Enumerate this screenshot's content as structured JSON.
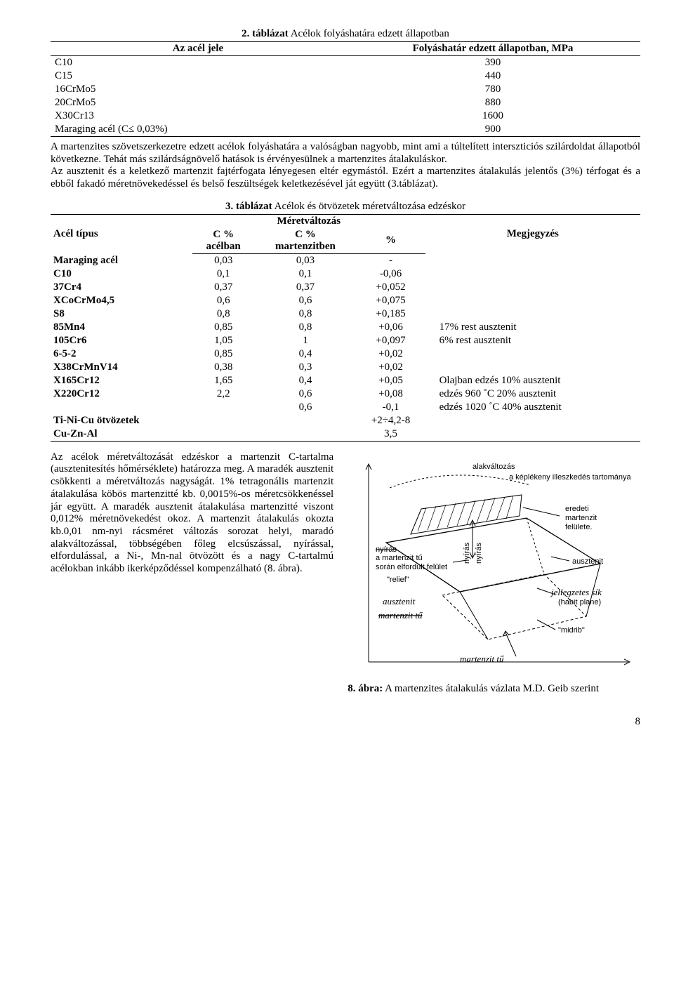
{
  "table2": {
    "caption_bold": "2. táblázat",
    "caption_rest": " Acélok folyáshatára edzett állapotban",
    "header_col1": "Az acél jele",
    "header_col2": "Folyáshatár edzett állapotban, MPa",
    "rows": [
      {
        "name": "C10",
        "val": "390"
      },
      {
        "name": "C15",
        "val": "440"
      },
      {
        "name": "16CrMo5",
        "val": "780"
      },
      {
        "name": "20CrMo5",
        "val": "880"
      },
      {
        "name": "X30Cr13",
        "val": "1600"
      },
      {
        "name": "Maraging acél (C≤ 0,03%)",
        "val": "900"
      }
    ]
  },
  "para1": "A martenzites szövetszerkezetre edzett acélok folyáshatára a valóságban nagyobb, mint ami a túltelített interszticiós szilárdoldat állapotból következne. Tehát más szilárdságnövelő hatások is érvényesülnek a martenzites átalakuláskor.",
  "para2": "Az ausztenit és a keletkező martenzit fajtérfogata lényegesen eltér egymástól. Ezért a martenzites átalakulás jelentős (3%) térfogat és a ebből fakadó méretnövekedéssel és belső feszültségek keletkezésével ját együtt (3.táblázat).",
  "table3": {
    "caption_bold": "3. táblázat",
    "caption_rest": " Acélok és ötvözetek méretváltozása edzéskor",
    "hdr_type": "Acél típus",
    "hdr_change": "Méretváltozás",
    "hdr_c_steel": "C % acélban",
    "hdr_c_mart": "C % martenzitben",
    "hdr_pct": "%",
    "hdr_note": "Megjegyzés",
    "rows": [
      {
        "name": "Maraging acél",
        "c1": "0,03",
        "c2": "0,03",
        "pct": "-",
        "note": ""
      },
      {
        "name": "C10",
        "c1": "0,1",
        "c2": "0,1",
        "pct": "-0,06",
        "note": ""
      },
      {
        "name": "37Cr4",
        "c1": "0,37",
        "c2": "0,37",
        "pct": "+0,052",
        "note": ""
      },
      {
        "name": "XCoCrMo4,5",
        "c1": "0,6",
        "c2": "0,6",
        "pct": "+0,075",
        "note": ""
      },
      {
        "name": "S8",
        "c1": "0,8",
        "c2": "0,8",
        "pct": "+0,185",
        "note": ""
      },
      {
        "name": "85Mn4",
        "c1": "0,85",
        "c2": "0,8",
        "pct": "+0,06",
        "note": "17% rest ausztenit"
      },
      {
        "name": "105Cr6",
        "c1": "1,05",
        "c2": "1",
        "pct": "+0,097",
        "note": "6% rest ausztenit"
      },
      {
        "name": "6-5-2",
        "c1": "0,85",
        "c2": "0,4",
        "pct": "+0,02",
        "note": ""
      },
      {
        "name": "X38CrMnV14",
        "c1": "0,38",
        "c2": "0,3",
        "pct": "+0,02",
        "note": ""
      },
      {
        "name": "X165Cr12",
        "c1": "1,65",
        "c2": "0,4",
        "pct": "+0,05",
        "note": "Olajban edzés 10% ausztenit"
      },
      {
        "name": "X220Cr12",
        "c1": "2,2",
        "c2": "0,6",
        "pct": "+0,08",
        "note": "edzés 960 ˚C 20% ausztenit"
      },
      {
        "name": "",
        "c1": "",
        "c2": "0,6",
        "pct": "-0,1",
        "note": "edzés 1020 ˚C 40% ausztenit"
      },
      {
        "name": "Ti-Ni-Cu ötvözetek",
        "c1": "",
        "c2": "",
        "pct": "+2÷4,2-8",
        "note": ""
      },
      {
        "name": "Cu-Zn-Al",
        "c1": "",
        "c2": "",
        "pct": "3,5",
        "note": ""
      }
    ]
  },
  "para3": "Az acélok méretváltozását edzéskor a martenzit C-tartalma (ausztenitesítés hőmérséklete) határozza meg. A maradék ausztenit csökkenti a méretváltozás nagyságát. 1% tetragonális martenzit átalakulása köbös martenzitté kb. 0,0015%-os méretcsökkenéssel jár együtt. A maradék ausztenit átalakulása martenzitté viszont 0,012% méretnövekedést okoz. A martenzit átalakulás okozta kb.0,01 nm-nyi rácsméret változás sorozat helyi, maradó alakváltozással, többségében főleg elcsúszással, nyírással, elfordulással, a Ni-, Mn-nal ötvözött és a nagy C-tartalmú acélokban inkább ikerképződéssel kompenzálható (8. ábra).",
  "figure": {
    "caption_bold": "8. ábra:",
    "caption_rest": " A martenzites átalakulás vázlata M.D. Geib szerint",
    "labels": {
      "domain": "a képlékeny illeszkedés tartománya",
      "alak": "alakváltozás",
      "original": "eredeti martenzit felülete",
      "austenite": "ausztenit",
      "relief": "\"relief\"",
      "turned": "során elfordult felület",
      "needle": "a martenzit tű",
      "shear1": "nyírás",
      "shear2": "nyírás",
      "aust_hand": "ausztenit",
      "habit": "(habit plane)",
      "habit_hand": "jellegzetes sík",
      "midrib": "\"midrib\"",
      "mart_needle": "martenzit tű",
      "mart_bottom": "martenzit tű"
    }
  },
  "page_number": "8"
}
